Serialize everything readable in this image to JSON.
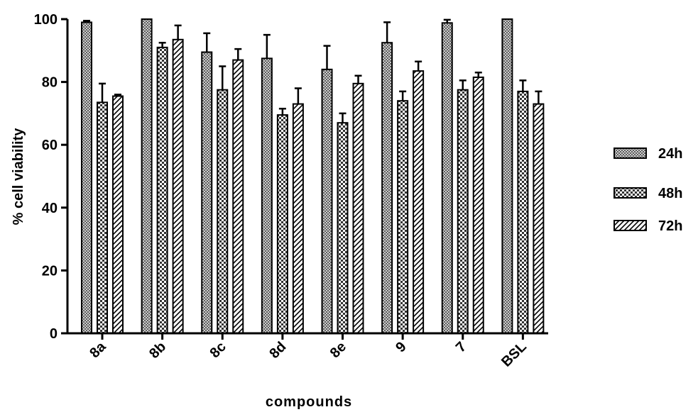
{
  "chart_data": {
    "type": "bar",
    "title": "",
    "xlabel": "compounds",
    "ylabel": "% cell viability",
    "ylim": [
      0,
      100
    ],
    "yticks": [
      0,
      20,
      40,
      60,
      80,
      100
    ],
    "categories": [
      "8a",
      "8b",
      "8c",
      "8d",
      "8e",
      "9",
      "7",
      "BSL"
    ],
    "series": [
      {
        "name": "24h",
        "pattern": "dense-cross",
        "values": [
          99,
          100,
          89.5,
          87.5,
          84,
          92.5,
          98.8,
          100
        ],
        "errors": [
          0.5,
          0,
          6,
          7.5,
          7.5,
          6.5,
          1,
          0
        ]
      },
      {
        "name": "48h",
        "pattern": "checker",
        "values": [
          73.5,
          91,
          77.5,
          69.5,
          67,
          74,
          77.5,
          77
        ],
        "errors": [
          6,
          1.5,
          7.5,
          2,
          3,
          3,
          3,
          3.5
        ]
      },
      {
        "name": "72h",
        "pattern": "diagonal",
        "values": [
          75.5,
          93.5,
          87,
          73,
          79.5,
          83.5,
          81.5,
          73
        ],
        "errors": [
          0.5,
          4.5,
          3.5,
          5,
          2.5,
          3,
          1.5,
          4
        ]
      }
    ],
    "legend": "right",
    "grid": false
  }
}
